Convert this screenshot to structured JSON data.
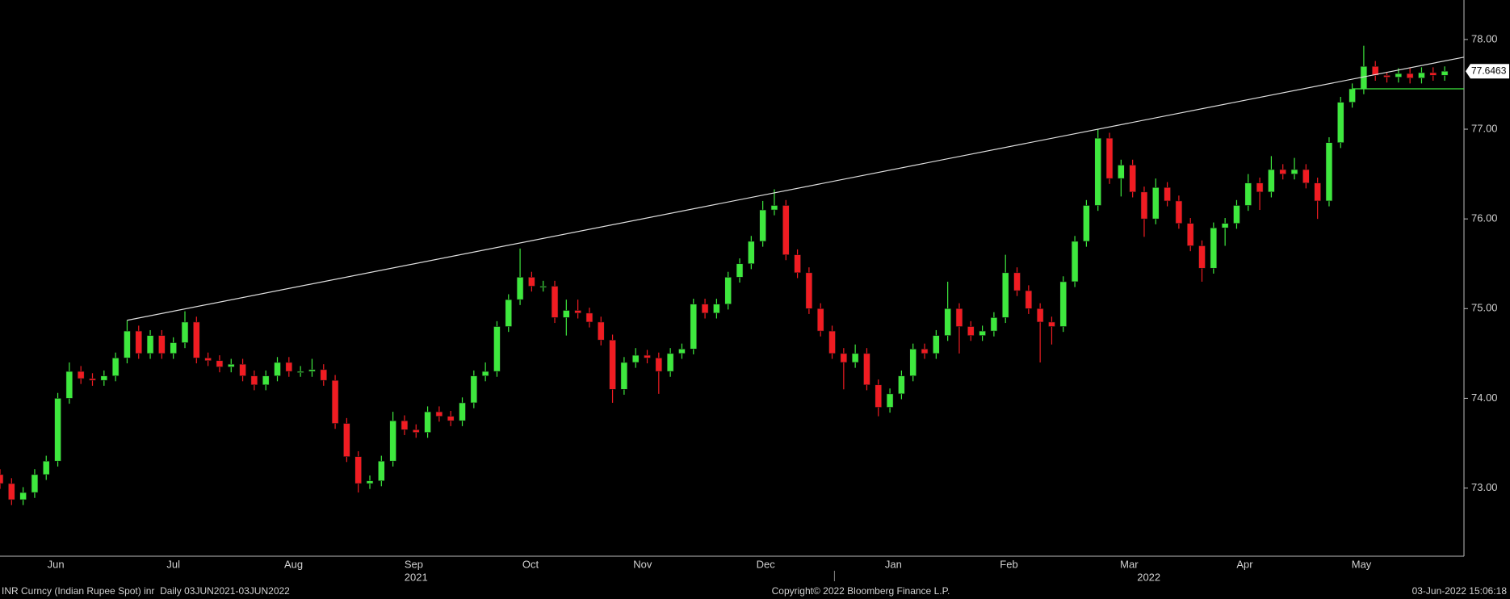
{
  "chart_data": {
    "type": "candlestick",
    "open": [
      73.15,
      73.05,
      72.87,
      72.95,
      73.15,
      73.3,
      74.0,
      74.3,
      74.22,
      74.2,
      74.25,
      74.45,
      74.75,
      74.5,
      74.7,
      74.5,
      74.62,
      74.85,
      74.45,
      74.42,
      74.35,
      74.38,
      74.25,
      74.15,
      74.25,
      74.4,
      74.3,
      74.3,
      74.32,
      74.2,
      73.72,
      73.35,
      73.05,
      73.08,
      73.3,
      73.75,
      73.65,
      73.62,
      73.85,
      73.8,
      73.75,
      73.95,
      74.25,
      74.3,
      74.8,
      75.1,
      75.35,
      75.25,
      75.25,
      74.9,
      74.98,
      74.95,
      74.85,
      74.65,
      74.1,
      74.4,
      74.48,
      74.45,
      74.3,
      74.5,
      74.55,
      75.05,
      74.95,
      75.05,
      75.35,
      75.5,
      75.75,
      76.1,
      76.15,
      75.6,
      75.4,
      75.0,
      74.75,
      74.5,
      74.4,
      74.5,
      74.15,
      73.9,
      74.05,
      74.25,
      74.55,
      74.5,
      74.7,
      75.0,
      74.8,
      74.7,
      74.75,
      74.9,
      75.4,
      75.2,
      75.0,
      74.85,
      74.8,
      75.3,
      75.75,
      76.15,
      76.9,
      76.45,
      76.6,
      76.3,
      76.0,
      76.35,
      76.2,
      75.95,
      75.7,
      75.45,
      75.9,
      75.95,
      76.15,
      76.4,
      76.3,
      76.55,
      76.5,
      76.55,
      76.4,
      76.2,
      76.85,
      77.3,
      77.45,
      77.7,
      77.6,
      77.58,
      77.62,
      77.57,
      77.63,
      77.6
    ],
    "high": [
      73.21,
      73.11,
      73.01,
      73.21,
      73.36,
      74.06,
      74.4,
      74.36,
      74.28,
      74.31,
      74.51,
      74.87,
      74.81,
      74.76,
      74.76,
      74.68,
      74.97,
      74.91,
      74.51,
      74.48,
      74.44,
      74.44,
      74.31,
      74.31,
      74.46,
      74.46,
      74.36,
      74.44,
      74.38,
      74.26,
      73.78,
      73.41,
      73.14,
      73.36,
      73.85,
      73.81,
      73.71,
      73.91,
      73.91,
      73.86,
      74.01,
      74.31,
      74.4,
      74.86,
      75.16,
      75.67,
      75.41,
      75.31,
      75.31,
      75.1,
      75.1,
      75.01,
      74.91,
      74.71,
      74.46,
      74.56,
      74.54,
      74.51,
      74.56,
      74.61,
      75.11,
      75.11,
      75.11,
      75.41,
      75.56,
      75.81,
      76.2,
      76.33,
      76.21,
      75.66,
      75.46,
      75.06,
      74.81,
      74.56,
      74.6,
      74.56,
      74.21,
      74.11,
      74.31,
      74.61,
      74.61,
      74.76,
      75.3,
      75.06,
      74.86,
      74.81,
      74.96,
      75.6,
      75.46,
      75.26,
      75.06,
      74.91,
      75.36,
      75.81,
      76.21,
      77.0,
      76.96,
      76.66,
      76.66,
      76.36,
      76.45,
      76.41,
      76.26,
      76.01,
      75.76,
      75.96,
      76.01,
      76.21,
      76.5,
      76.46,
      76.7,
      76.61,
      76.68,
      76.61,
      76.46,
      76.91,
      77.36,
      77.51,
      77.93,
      77.76,
      77.64,
      77.68,
      77.68,
      77.69,
      77.69,
      77.7
    ],
    "low": [
      72.99,
      72.81,
      72.81,
      72.89,
      73.09,
      73.24,
      73.94,
      74.16,
      74.14,
      74.14,
      74.19,
      74.39,
      74.44,
      74.44,
      74.44,
      74.44,
      74.56,
      74.39,
      74.36,
      74.29,
      74.29,
      74.19,
      74.09,
      74.09,
      74.19,
      74.24,
      74.24,
      74.24,
      74.14,
      73.66,
      73.29,
      72.95,
      72.99,
      73.02,
      73.24,
      73.59,
      73.56,
      73.56,
      73.74,
      73.69,
      73.69,
      73.89,
      74.19,
      74.24,
      74.74,
      75.04,
      75.19,
      75.19,
      74.84,
      74.7,
      74.89,
      74.79,
      74.59,
      73.95,
      74.04,
      74.34,
      74.39,
      74.05,
      74.24,
      74.44,
      74.49,
      74.89,
      74.89,
      74.99,
      75.29,
      75.44,
      75.69,
      76.04,
      75.54,
      75.34,
      74.94,
      74.69,
      74.44,
      74.1,
      74.34,
      74.09,
      73.8,
      73.84,
      73.99,
      74.19,
      74.44,
      74.44,
      74.64,
      74.5,
      74.64,
      74.64,
      74.69,
      74.84,
      75.14,
      74.94,
      74.4,
      74.6,
      74.74,
      75.24,
      75.69,
      76.09,
      76.39,
      76.25,
      76.24,
      75.8,
      75.94,
      76.14,
      75.89,
      75.64,
      75.3,
      75.39,
      75.7,
      75.89,
      76.09,
      76.1,
      76.24,
      76.44,
      76.44,
      76.34,
      76.0,
      76.14,
      76.79,
      77.24,
      77.39,
      77.54,
      77.52,
      77.52,
      77.51,
      77.51,
      77.54,
      77.54
    ],
    "close": [
      73.05,
      72.87,
      72.95,
      73.15,
      73.3,
      74.0,
      74.3,
      74.22,
      74.2,
      74.25,
      74.45,
      74.75,
      74.5,
      74.7,
      74.5,
      74.62,
      74.85,
      74.45,
      74.42,
      74.35,
      74.38,
      74.25,
      74.15,
      74.25,
      74.4,
      74.3,
      74.3,
      74.32,
      74.2,
      73.72,
      73.35,
      73.05,
      73.08,
      73.3,
      73.75,
      73.65,
      73.62,
      73.85,
      73.8,
      73.75,
      73.95,
      74.25,
      74.3,
      74.8,
      75.1,
      75.35,
      75.25,
      75.25,
      74.9,
      74.98,
      74.95,
      74.85,
      74.65,
      74.1,
      74.4,
      74.48,
      74.45,
      74.3,
      74.5,
      74.55,
      75.05,
      74.95,
      75.05,
      75.35,
      75.5,
      75.75,
      76.1,
      76.15,
      75.6,
      75.4,
      75.0,
      74.75,
      74.5,
      74.4,
      74.5,
      74.15,
      73.9,
      74.05,
      74.25,
      74.55,
      74.5,
      74.7,
      75.0,
      74.8,
      74.7,
      74.75,
      74.9,
      75.4,
      75.2,
      75.0,
      74.85,
      74.8,
      75.3,
      75.75,
      76.15,
      76.9,
      76.45,
      76.6,
      76.3,
      76.0,
      76.35,
      76.2,
      75.95,
      75.7,
      75.45,
      75.9,
      75.95,
      76.15,
      76.4,
      76.3,
      76.55,
      76.5,
      76.55,
      76.4,
      76.2,
      76.85,
      77.3,
      77.45,
      77.7,
      77.6,
      77.58,
      77.62,
      77.57,
      77.63,
      77.6,
      77.6463
    ],
    "up_color": "#3ee83e",
    "down_color": "#f01c22",
    "xlim": [
      0,
      126.67
    ],
    "ylim": [
      72.24,
      78.44
    ],
    "yticks": [
      {
        "value": 73,
        "label": "73.00"
      },
      {
        "value": 74,
        "label": "74.00"
      },
      {
        "value": 75,
        "label": "75.00"
      },
      {
        "value": 76,
        "label": "76.00"
      },
      {
        "value": 77,
        "label": "77.00"
      },
      {
        "value": 78,
        "label": "78.00"
      }
    ],
    "xticks": [
      {
        "value": 4.83,
        "label": "Jun"
      },
      {
        "value": 15,
        "label": "Jul"
      },
      {
        "value": 25.4,
        "label": "Aug"
      },
      {
        "value": 35.8,
        "label": "Sep"
      },
      {
        "value": 45.9,
        "label": "Oct"
      },
      {
        "value": 55.6,
        "label": "Nov"
      },
      {
        "value": 66.25,
        "label": "Dec"
      },
      {
        "value": 77.3,
        "label": "Jan"
      },
      {
        "value": 87.3,
        "label": "Feb"
      },
      {
        "value": 97.7,
        "label": "Mar"
      },
      {
        "value": 107.7,
        "label": "Apr"
      },
      {
        "value": 117.8,
        "label": "May"
      }
    ],
    "year_labels": [
      {
        "value": 36,
        "label": "2021"
      },
      {
        "value": 99.4,
        "label": "2022"
      }
    ],
    "year_boundary": 72.2,
    "trendline_through_candles": [
      11,
      95
    ],
    "support": {
      "from_candle": 117,
      "level": 77.45
    },
    "footer_left": "INR Curncy (Indian Rupee Spot) inr  Daily 03JUN2021-03JUN2022",
    "footer_center": "Copyright© 2022 Bloomberg Finance L.P.",
    "footer_right": "03-Jun-2022 15:06:18"
  }
}
